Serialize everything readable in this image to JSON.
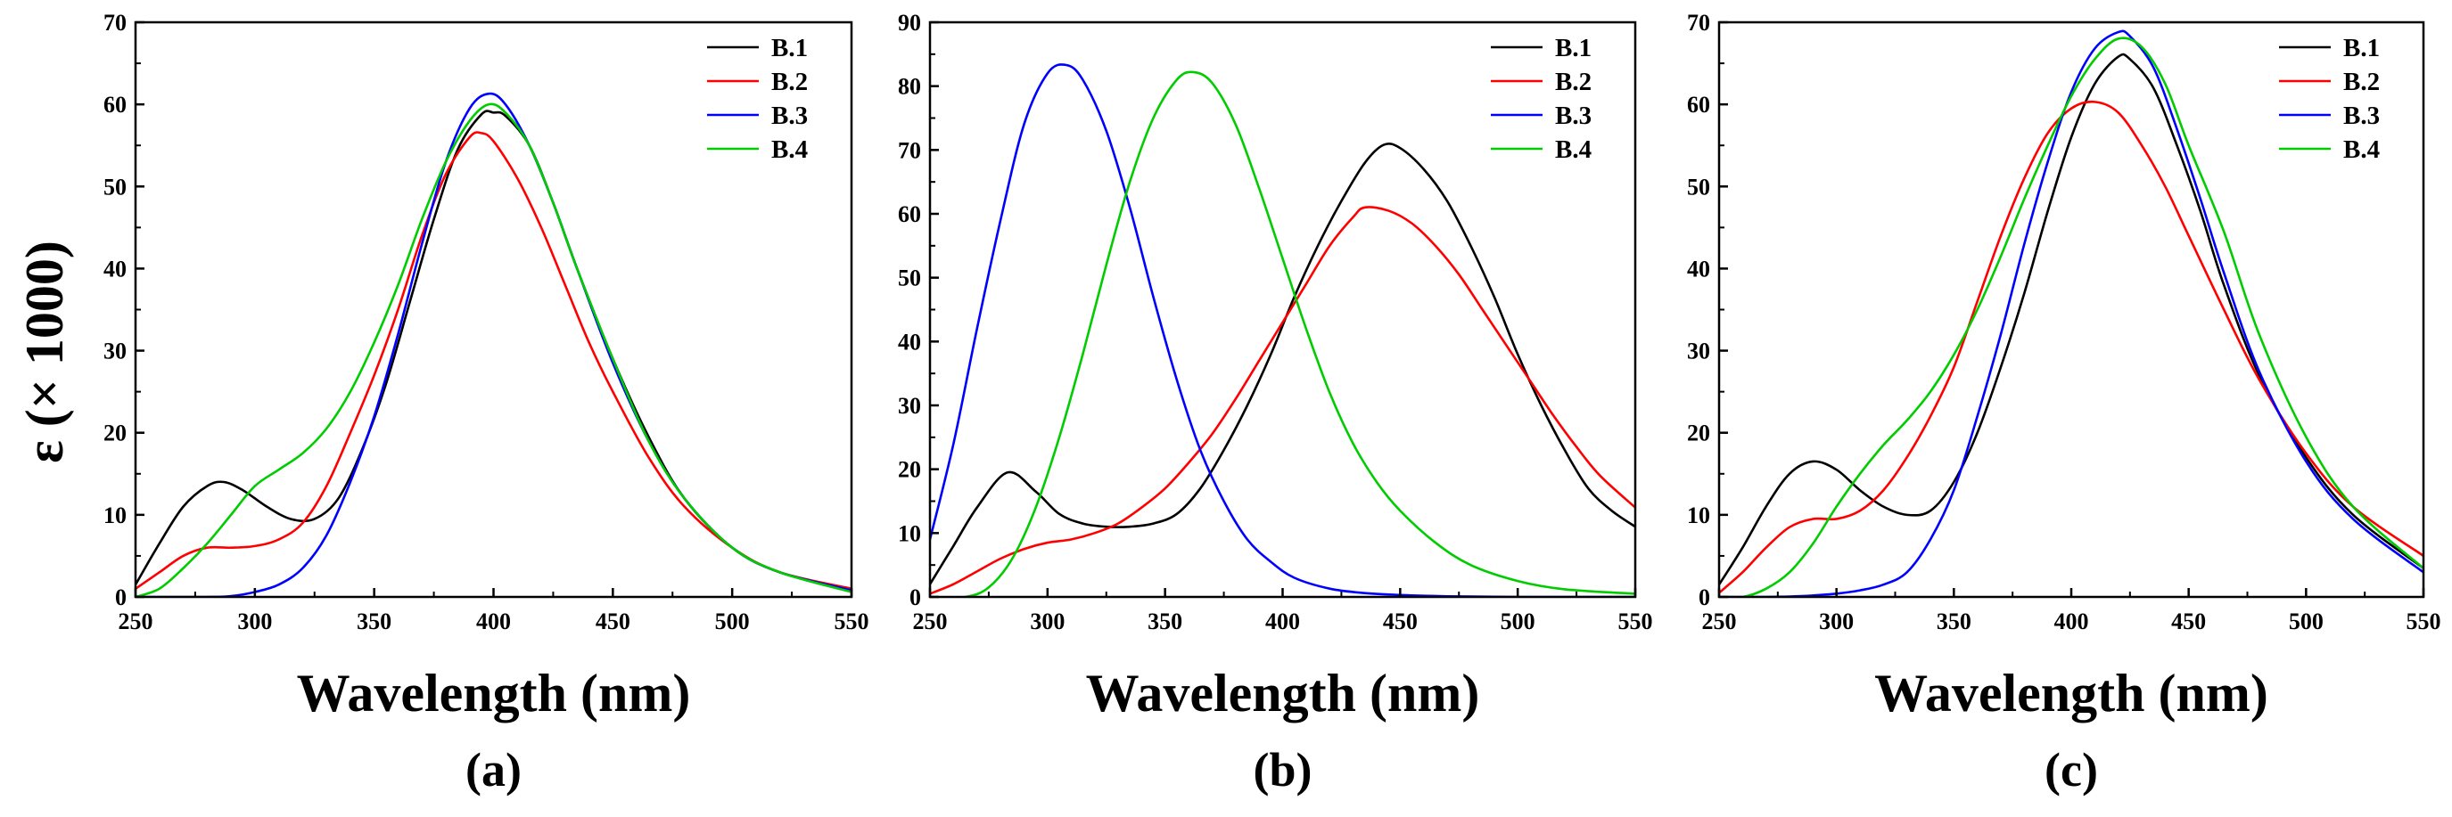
{
  "figure": {
    "ylabel": "ε (× 1000)"
  },
  "chart_data": [
    {
      "type": "line",
      "panel_label": "(a)",
      "xlabel": "Wavelength (nm)",
      "ylabel": "ε (× 1000)",
      "xlim": [
        250,
        550
      ],
      "ylim": [
        0,
        70
      ],
      "xticks": [
        250,
        300,
        350,
        400,
        450,
        500,
        550
      ],
      "yticks": [
        0,
        10,
        20,
        30,
        40,
        50,
        60,
        70
      ],
      "legend_position": "top-right",
      "series": [
        {
          "name": "B.1",
          "color": "#000000",
          "x": [
            250,
            260,
            270,
            280,
            287,
            295,
            305,
            315,
            325,
            335,
            345,
            355,
            365,
            375,
            385,
            395,
            400,
            405,
            415,
            425,
            435,
            450,
            465,
            480,
            500,
            520,
            550
          ],
          "y": [
            1.5,
            6.5,
            11,
            13.5,
            14,
            13,
            11,
            9.5,
            9.5,
            12,
            18,
            26,
            36,
            46,
            54.5,
            58.8,
            59,
            58.6,
            55,
            48,
            40,
            29,
            19.5,
            12,
            6,
            3,
            0.8
          ]
        },
        {
          "name": "B.2",
          "color": "#ff0000",
          "x": [
            250,
            260,
            270,
            280,
            290,
            300,
            310,
            320,
            330,
            340,
            350,
            360,
            370,
            380,
            390,
            395,
            400,
            410,
            420,
            430,
            440,
            450,
            465,
            480,
            500,
            520,
            550
          ],
          "y": [
            1,
            3,
            5,
            6,
            6,
            6.2,
            7,
            9,
            13.5,
            20,
            27,
            35,
            44,
            51.5,
            56,
            56.5,
            55.5,
            51,
            45,
            38,
            31,
            25,
            17,
            11,
            6,
            3,
            1
          ]
        },
        {
          "name": "B.3",
          "color": "#0000ff",
          "x": [
            250,
            265,
            280,
            290,
            300,
            310,
            320,
            330,
            340,
            350,
            360,
            370,
            380,
            390,
            398,
            405,
            415,
            425,
            435,
            450,
            465,
            480,
            500,
            520,
            550
          ],
          "y": [
            0,
            0,
            0,
            0.1,
            0.6,
            1.5,
            3.5,
            7.5,
            14,
            22,
            32,
            43,
            53,
            59.5,
            61.3,
            60,
            55,
            48,
            40,
            28.5,
            19,
            12,
            6,
            3,
            0.8
          ]
        },
        {
          "name": "B.4",
          "color": "#00cc00",
          "x": [
            250,
            260,
            270,
            280,
            290,
            300,
            310,
            320,
            330,
            340,
            350,
            360,
            370,
            380,
            390,
            398,
            405,
            415,
            425,
            435,
            450,
            465,
            480,
            500,
            520,
            550
          ],
          "y": [
            0,
            1,
            3.5,
            6.5,
            10,
            13.5,
            15.5,
            17.5,
            20.5,
            25,
            31,
            38,
            46,
            53,
            58,
            60,
            59,
            55,
            48,
            40,
            29,
            19,
            12,
            6,
            3,
            0.6
          ]
        }
      ]
    },
    {
      "type": "line",
      "panel_label": "(b)",
      "xlabel": "Wavelength (nm)",
      "ylabel": "",
      "xlim": [
        250,
        550
      ],
      "ylim": [
        0,
        90
      ],
      "xticks": [
        250,
        300,
        350,
        400,
        450,
        500,
        550
      ],
      "yticks": [
        0,
        10,
        20,
        30,
        40,
        50,
        60,
        70,
        80,
        90
      ],
      "legend_position": "top-right",
      "series": [
        {
          "name": "B.1",
          "color": "#000000",
          "x": [
            250,
            260,
            270,
            283,
            295,
            305,
            315,
            325,
            335,
            345,
            355,
            365,
            375,
            385,
            395,
            405,
            415,
            425,
            435,
            443,
            450,
            460,
            470,
            480,
            490,
            500,
            510,
            520,
            530,
            540,
            550
          ],
          "y": [
            2,
            8,
            14,
            19.5,
            16.5,
            13,
            11.5,
            11,
            11,
            11.5,
            13,
            17,
            23,
            30,
            38,
            47,
            55,
            62,
            68,
            70.8,
            70.3,
            67,
            62,
            55,
            47,
            38,
            30,
            23,
            17,
            13.5,
            11
          ]
        },
        {
          "name": "B.2",
          "color": "#ff0000",
          "x": [
            250,
            260,
            270,
            280,
            290,
            300,
            310,
            320,
            330,
            340,
            350,
            360,
            370,
            380,
            390,
            400,
            410,
            420,
            430,
            435,
            445,
            455,
            465,
            475,
            485,
            495,
            505,
            515,
            525,
            535,
            550
          ],
          "y": [
            0.5,
            2,
            4,
            6,
            7.5,
            8.5,
            9,
            10,
            11.5,
            14,
            17,
            21,
            25.5,
            31,
            37,
            43,
            49,
            55,
            59.5,
            61,
            60.5,
            58.5,
            55,
            50.5,
            45,
            39.5,
            34,
            28.5,
            23.5,
            19,
            14
          ]
        },
        {
          "name": "B.3",
          "color": "#0000ff",
          "x": [
            250,
            260,
            270,
            280,
            290,
            300,
            308,
            315,
            325,
            335,
            345,
            355,
            365,
            375,
            385,
            395,
            405,
            420,
            435,
            450,
            470,
            500,
            550
          ],
          "y": [
            9,
            24,
            42,
            59,
            74,
            82,
            83.3,
            81,
            73,
            61,
            47,
            34,
            23,
            15,
            9,
            5.5,
            3,
            1.3,
            0.6,
            0.3,
            0.1,
            0,
            0
          ]
        },
        {
          "name": "B.4",
          "color": "#00cc00",
          "x": [
            250,
            265,
            275,
            285,
            295,
            305,
            315,
            325,
            335,
            345,
            355,
            362,
            370,
            380,
            390,
            400,
            410,
            420,
            430,
            440,
            450,
            465,
            480,
            500,
            520,
            550
          ],
          "y": [
            0,
            0,
            1.5,
            6,
            14,
            25,
            38,
            52,
            65,
            75,
            81,
            82.2,
            80.5,
            74,
            64,
            53,
            42,
            32,
            24,
            18,
            13.5,
            8.5,
            5,
            2.5,
            1.2,
            0.5
          ]
        }
      ]
    },
    {
      "type": "line",
      "panel_label": "(c)",
      "xlabel": "Wavelength (nm)",
      "ylabel": "",
      "xlim": [
        250,
        550
      ],
      "ylim": [
        0,
        70
      ],
      "xticks": [
        250,
        300,
        350,
        400,
        450,
        500,
        550
      ],
      "yticks": [
        0,
        10,
        20,
        30,
        40,
        50,
        60,
        70
      ],
      "legend_position": "top-right",
      "series": [
        {
          "name": "B.1",
          "color": "#000000",
          "x": [
            250,
            260,
            270,
            280,
            290,
            300,
            310,
            320,
            330,
            340,
            350,
            360,
            370,
            380,
            390,
            400,
            410,
            420,
            425,
            435,
            445,
            455,
            465,
            480,
            500,
            520,
            550
          ],
          "y": [
            1.5,
            6,
            11,
            15,
            16.5,
            15.5,
            13,
            11,
            10,
            10.5,
            14,
            20,
            28,
            37,
            47,
            56,
            62.5,
            65.8,
            65.5,
            62,
            55,
            47,
            38,
            27,
            17,
            10,
            3.5
          ]
        },
        {
          "name": "B.2",
          "color": "#ff0000",
          "x": [
            250,
            260,
            270,
            280,
            290,
            300,
            310,
            320,
            330,
            340,
            350,
            360,
            370,
            380,
            390,
            400,
            410,
            420,
            430,
            440,
            450,
            465,
            480,
            500,
            520,
            550
          ],
          "y": [
            0.5,
            3,
            6,
            8.5,
            9.5,
            9.5,
            10.5,
            13,
            17,
            22,
            28,
            36,
            44,
            51,
            56.5,
            59.5,
            60.3,
            59,
            55,
            50,
            44,
            35,
            26.5,
            17.5,
            11,
            5
          ]
        },
        {
          "name": "B.3",
          "color": "#0000ff",
          "x": [
            250,
            270,
            285,
            300,
            310,
            320,
            330,
            340,
            350,
            360,
            370,
            380,
            390,
            400,
            410,
            420,
            425,
            435,
            445,
            455,
            465,
            480,
            500,
            520,
            550
          ],
          "y": [
            0,
            0,
            0.1,
            0.4,
            0.8,
            1.5,
            3,
            7,
            13,
            22,
            32,
            43,
            53,
            61.5,
            66.8,
            68.8,
            68.3,
            64.5,
            57,
            48.5,
            39.5,
            27.5,
            16.5,
            9.5,
            3
          ]
        },
        {
          "name": "B.4",
          "color": "#00cc00",
          "x": [
            250,
            260,
            270,
            280,
            290,
            300,
            310,
            320,
            330,
            340,
            350,
            360,
            370,
            380,
            390,
            400,
            410,
            420,
            430,
            440,
            450,
            465,
            480,
            500,
            520,
            550
          ],
          "y": [
            0,
            0,
            1,
            3,
            6.5,
            11,
            15,
            18.5,
            21.5,
            25,
            29.5,
            35,
            41.5,
            48.5,
            55,
            61,
            65.5,
            68,
            67,
            62.5,
            55,
            44.5,
            32,
            19.5,
            11,
            3.5
          ]
        }
      ]
    }
  ]
}
